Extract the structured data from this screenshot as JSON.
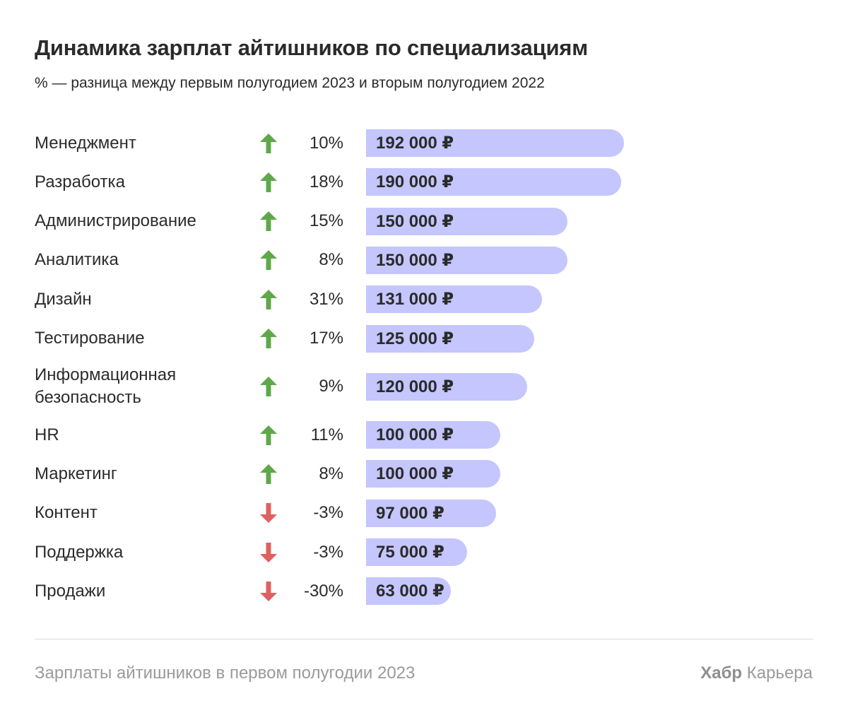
{
  "title": "Динамика зарплат айтишников по специализациям",
  "subtitle": "% — разница между первым полугодием 2023 и вторым полугодием 2022",
  "footer": {
    "note": "Зарплаты айтишников в первом полугодии 2023",
    "brand_bold": "Хабр",
    "brand_rest": "Карьера"
  },
  "colors": {
    "bar": "#c4c6fd",
    "arrow_up": "#5fa84a",
    "arrow_down": "#e06060",
    "text": "#2b2b2b",
    "muted": "#9a9a9a"
  },
  "chart_data": {
    "type": "bar",
    "orientation": "horizontal",
    "categories": [
      [
        "Менеджмент"
      ],
      [
        "Разработка"
      ],
      [
        "Администрирование"
      ],
      [
        "Аналитика"
      ],
      [
        "Дизайн"
      ],
      [
        "Тестирование"
      ],
      [
        "Информационная",
        "безопасность"
      ],
      [
        "HR"
      ],
      [
        "Маркетинг"
      ],
      [
        "Контент"
      ],
      [
        "Поддержка"
      ],
      [
        "Продажи"
      ]
    ],
    "values": [
      192000,
      190000,
      150000,
      150000,
      131000,
      125000,
      120000,
      100000,
      100000,
      97000,
      75000,
      63000
    ],
    "value_labels": [
      "192 000 ₽",
      "190 000 ₽",
      "150 000 ₽",
      "150 000 ₽",
      "131 000 ₽",
      "125 000 ₽",
      "120 000 ₽",
      "100 000 ₽",
      "100 000 ₽",
      "97 000 ₽",
      "75 000 ₽",
      "63 000 ₽"
    ],
    "change_labels": [
      "10%",
      "18%",
      "15%",
      "8%",
      "31%",
      "17%",
      "9%",
      "11%",
      "8%",
      "-3%",
      "-3%",
      "-30%"
    ],
    "change_values": [
      10,
      18,
      15,
      8,
      31,
      17,
      9,
      11,
      8,
      -3,
      -3,
      -30
    ],
    "trend": [
      "up",
      "up",
      "up",
      "up",
      "up",
      "up",
      "up",
      "up",
      "up",
      "down",
      "down",
      "down"
    ],
    "xlim": [
      0,
      192000
    ]
  }
}
